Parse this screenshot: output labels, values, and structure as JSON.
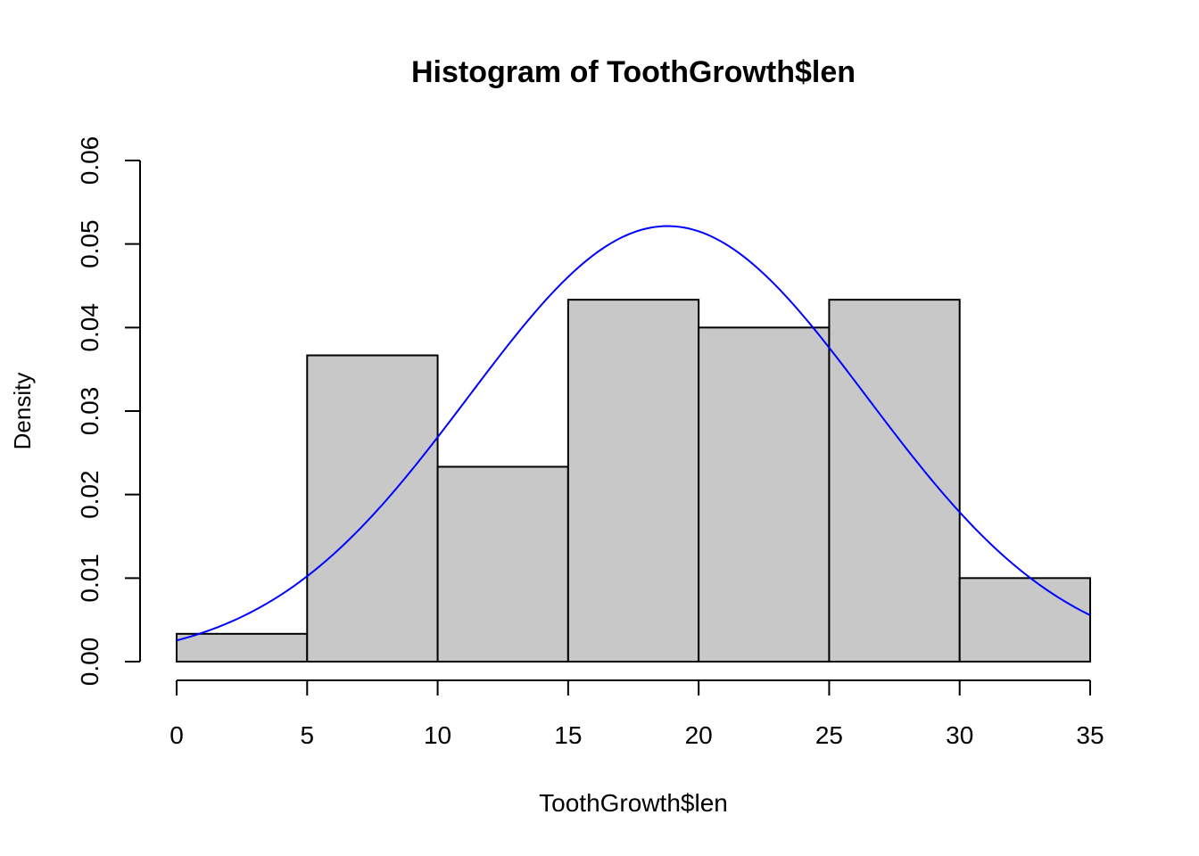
{
  "chart_data": {
    "type": "bar",
    "title": "Histogram of ToothGrowth$len",
    "xlabel": "ToothGrowth$len",
    "ylabel": "Density",
    "xlim": [
      0,
      35
    ],
    "ylim": [
      0,
      0.06
    ],
    "x_ticks": [
      "0",
      "5",
      "10",
      "15",
      "20",
      "25",
      "30",
      "35"
    ],
    "x_tick_values": [
      0,
      5,
      10,
      15,
      20,
      25,
      30,
      35
    ],
    "y_ticks": [
      "0.00",
      "0.01",
      "0.02",
      "0.03",
      "0.04",
      "0.05",
      "0.06"
    ],
    "y_tick_values": [
      0,
      0.01,
      0.02,
      0.03,
      0.04,
      0.05,
      0.06
    ],
    "bins": [
      {
        "from": 0,
        "to": 5,
        "density": 0.00333
      },
      {
        "from": 5,
        "to": 10,
        "density": 0.03667
      },
      {
        "from": 10,
        "to": 15,
        "density": 0.02333
      },
      {
        "from": 15,
        "to": 20,
        "density": 0.04333
      },
      {
        "from": 20,
        "to": 25,
        "density": 0.04
      },
      {
        "from": 25,
        "to": 30,
        "density": 0.04333
      },
      {
        "from": 30,
        "to": 35,
        "density": 0.01
      }
    ],
    "density_curve": {
      "type": "normal",
      "mean": 18.81,
      "sd": 7.65,
      "x_range": [
        0,
        35
      ]
    },
    "grid": false,
    "colors": {
      "bar_fill": "#c8c8c8",
      "bar_stroke": "#000000",
      "curve": "#0000ff"
    }
  }
}
